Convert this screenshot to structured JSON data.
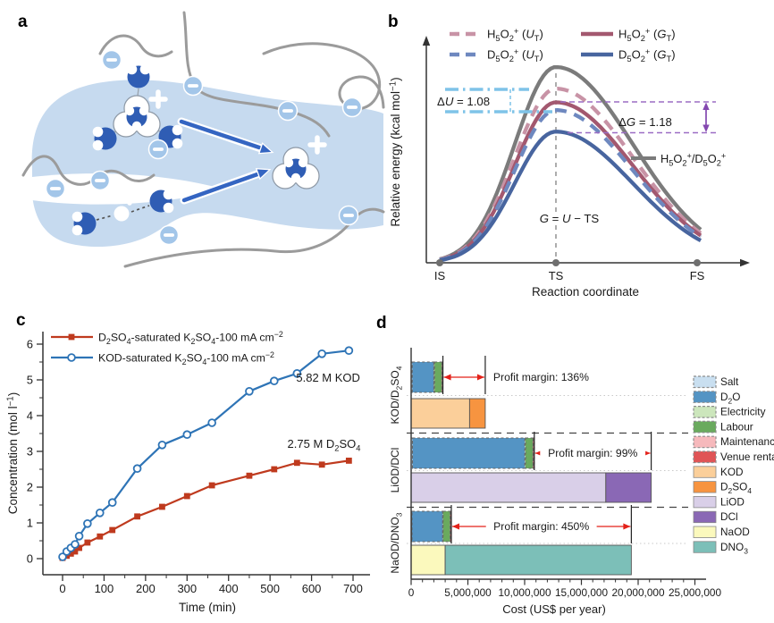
{
  "panels": {
    "a": {
      "label": "a"
    },
    "b": {
      "label": "b"
    },
    "c": {
      "label": "c"
    },
    "d": {
      "label": "d"
    }
  },
  "panel_a": {
    "icons": [
      "membrane-channel",
      "polymer-strand",
      "sulfonate-minus-site",
      "water-molecule",
      "hydronium-cation-bubble",
      "plus-charge",
      "proton-transfer-arrow"
    ],
    "colors": {
      "channel": "#c6daef",
      "water": "#2f5db4",
      "minus_site": "#a3c6e9",
      "strand": "#9b9b9b",
      "arrow": "#3465c2"
    }
  },
  "chart_data": [
    {
      "id": "b",
      "type": "line",
      "panel": "b",
      "title": "",
      "ylabel": "Relative energy (kcal mol^−1^)",
      "xlabel": "Reaction coordinate",
      "x_ticks": [
        "IS",
        "TS",
        "FS"
      ],
      "grid": false,
      "legend_position": "top",
      "series": [
        {
          "name": "H~5~O~2~^+^ (*U*~T~)",
          "color": "#c893a6",
          "dash": "13 9",
          "peak_rel": 0.89
        },
        {
          "name": "H~5~O~2~^+^ (*G*~T~)",
          "color": "#a3586f",
          "dash": null,
          "peak_rel": 0.82
        },
        {
          "name": "D~5~O~2~^+^ (*U*~T~)",
          "color": "#6e88bf",
          "dash": "13 9",
          "peak_rel": 0.78
        },
        {
          "name": "D~5~O~2~^+^ (*G*~T~)",
          "color": "#48659f",
          "dash": null,
          "peak_rel": 0.67
        },
        {
          "name": "H~5~O~2~^+^/D~5~O~2~^+^",
          "color": "#7b7b7b",
          "dash": null,
          "peak_rel": 1.0,
          "legend": "inline"
        }
      ],
      "annotations": {
        "delta_U": {
          "text": "Δ*U* = 1.08",
          "color": "#7fc3e8"
        },
        "delta_G": {
          "text": "Δ*G* = 1.18",
          "color": "#9b6dc4",
          "arrow_color": "#8448b0"
        },
        "equation": "*G* = *U* − TS"
      }
    },
    {
      "id": "c",
      "type": "line",
      "panel": "c",
      "xlabel": "Time (min)",
      "ylabel": "Concentration (mol l^−1^)",
      "xlim": [
        0,
        700
      ],
      "ylim": [
        0,
        6
      ],
      "grid": false,
      "x_major_ticks": [
        0,
        100,
        200,
        300,
        400,
        500,
        600,
        700
      ],
      "y_major_ticks": [
        0,
        1,
        2,
        3,
        4,
        5,
        6
      ],
      "series": [
        {
          "name": "D~2~SO~4~-saturated K~2~SO~4~-100 mA cm^−2^",
          "color": "#bf3a1e",
          "marker": "filled-square",
          "points": [
            [
              0,
              0.02
            ],
            [
              10,
              0.08
            ],
            [
              20,
              0.14
            ],
            [
              30,
              0.2
            ],
            [
              40,
              0.3
            ],
            [
              60,
              0.45
            ],
            [
              90,
              0.62
            ],
            [
              120,
              0.8
            ],
            [
              180,
              1.18
            ],
            [
              240,
              1.45
            ],
            [
              300,
              1.75
            ],
            [
              360,
              2.05
            ],
            [
              450,
              2.32
            ],
            [
              510,
              2.5
            ],
            [
              565,
              2.68
            ],
            [
              625,
              2.63
            ],
            [
              690,
              2.74
            ]
          ]
        },
        {
          "name": "KOD-saturated K~2~SO~4~-100 mA cm^−2^",
          "color": "#2e74b6",
          "marker": "open-circle",
          "points": [
            [
              0,
              0.05
            ],
            [
              10,
              0.2
            ],
            [
              20,
              0.3
            ],
            [
              30,
              0.4
            ],
            [
              40,
              0.63
            ],
            [
              60,
              0.98
            ],
            [
              90,
              1.28
            ],
            [
              120,
              1.57
            ],
            [
              180,
              2.52
            ],
            [
              240,
              3.18
            ],
            [
              300,
              3.47
            ],
            [
              360,
              3.8
            ],
            [
              450,
              4.68
            ],
            [
              510,
              4.97
            ],
            [
              565,
              5.18
            ],
            [
              625,
              5.73
            ],
            [
              690,
              5.82
            ]
          ]
        }
      ],
      "annotations": [
        {
          "text": "5.82 M KOD",
          "x": 640,
          "y": 4.95
        },
        {
          "text": "2.75 M D~2~SO~4~",
          "x": 630,
          "y": 3.1
        }
      ]
    },
    {
      "id": "d",
      "type": "stacked-bar-horizontal",
      "panel": "d",
      "xlabel": "Cost (US$ per year)",
      "x_ticks": [
        {
          "value": 0,
          "label": "0"
        },
        {
          "value": 5000000,
          "label": "5,000,000"
        },
        {
          "value": 10000000,
          "label": "10,000,000"
        },
        {
          "value": 15000000,
          "label": "15,000,000"
        },
        {
          "value": 20000000,
          "label": "20,000,000"
        },
        {
          "value": 25000000,
          "label": "25,000,000"
        }
      ],
      "legend": [
        {
          "label": "Salt",
          "color": "#c9dff0",
          "dashed": true
        },
        {
          "label": "D~2~O",
          "color": "#5494c4",
          "dashed": true
        },
        {
          "label": "Electricity",
          "color": "#cce6bc",
          "dashed": true
        },
        {
          "label": "Labour",
          "color": "#6aaa5e",
          "dashed": true
        },
        {
          "label": "Maintenance",
          "color": "#f6b9bc",
          "dashed": true
        },
        {
          "label": "Venue rental",
          "color": "#e05456",
          "dashed": true
        },
        {
          "label": "KOD",
          "color": "#fbcf9a",
          "dashed": false
        },
        {
          "label": "D~2~SO~4~",
          "color": "#f79440",
          "dashed": false
        },
        {
          "label": "LiOD",
          "color": "#d9cfe8",
          "dashed": false
        },
        {
          "label": "DCl",
          "color": "#8a68b5",
          "dashed": false
        },
        {
          "label": "NaOD",
          "color": "#fbf9bd",
          "dashed": false
        },
        {
          "label": "DNO~3~",
          "color": "#7cbfb8",
          "dashed": false
        }
      ],
      "groups": [
        {
          "label": "KOD/D~2~SO~4~",
          "cost": [
            {
              "name": "Salt",
              "value": 100000
            },
            {
              "name": "D~2~O",
              "value": 1900000
            },
            {
              "name": "Electricity",
              "value": 60000
            },
            {
              "name": "Labour",
              "value": 650000
            },
            {
              "name": "Maintenance",
              "value": 30000
            },
            {
              "name": "Venue rental",
              "value": 60000
            }
          ],
          "revenue": [
            {
              "name": "KOD",
              "value": 5150000
            },
            {
              "name": "D~2~SO~4~",
              "value": 1380000
            }
          ],
          "profit_text": "Profit margin: 136%",
          "profit_text_outside": true
        },
        {
          "label": "LiOD/DCl",
          "cost": [
            {
              "name": "Salt",
              "value": 120000
            },
            {
              "name": "D~2~O",
              "value": 9900000
            },
            {
              "name": "Electricity",
              "value": 60000
            },
            {
              "name": "Labour",
              "value": 650000
            },
            {
              "name": "Maintenance",
              "value": 40000
            },
            {
              "name": "Venue rental",
              "value": 80000
            }
          ],
          "revenue": [
            {
              "name": "LiOD",
              "value": 17150000
            },
            {
              "name": "DCl",
              "value": 4000000
            }
          ],
          "profit_text": "Profit margin: 99%",
          "profit_text_outside": false
        },
        {
          "label": "NaOD/DNO~3~",
          "cost": [
            {
              "name": "Salt",
              "value": 80000
            },
            {
              "name": "D~2~O",
              "value": 2700000
            },
            {
              "name": "Electricity",
              "value": 40000
            },
            {
              "name": "Labour",
              "value": 620000
            },
            {
              "name": "Maintenance",
              "value": 30000
            },
            {
              "name": "Venue rental",
              "value": 70000
            }
          ],
          "revenue": [
            {
              "name": "NaOD",
              "value": 3000000
            },
            {
              "name": "DNO~3~",
              "value": 16400000
            }
          ],
          "profit_text": "Profit margin: 450%",
          "profit_text_outside": false
        }
      ],
      "profit_arrow_color": "#e32119"
    }
  ]
}
